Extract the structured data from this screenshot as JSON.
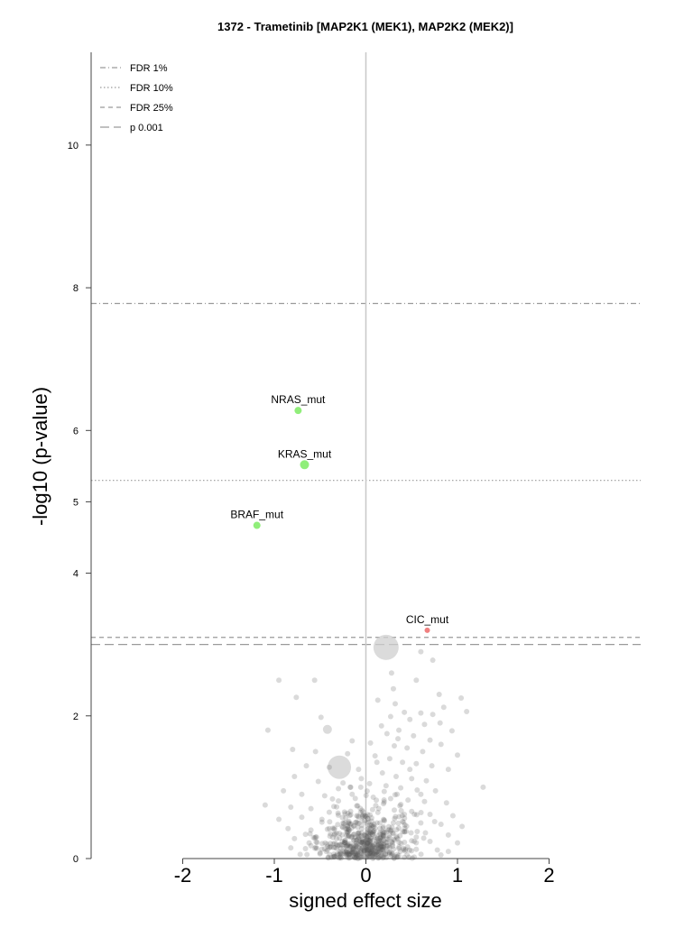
{
  "chart_data": {
    "type": "scatter",
    "title": "1372 - Trametinib [MAP2K1 (MEK1), MAP2K2 (MEK2)]",
    "xlabel": "signed effect size",
    "ylabel": "-log10 (p-value)",
    "xlim": [
      -3.0,
      3.0
    ],
    "ylim": [
      0,
      11.3
    ],
    "x_ticks": [
      -2,
      -1,
      0,
      1,
      2
    ],
    "x_tick_labels": [
      "-2",
      "-1",
      "0",
      "1",
      "2"
    ],
    "y_ticks": [
      0,
      2,
      4,
      5,
      6,
      8,
      10
    ],
    "y_tick_labels": [
      "0",
      "2",
      "4",
      "5",
      "6",
      "8",
      "10"
    ],
    "grid": false,
    "legend_position": "top-left",
    "thresholds": [
      {
        "name": "FDR 1%",
        "y": 7.78,
        "style": "dashdot",
        "color": "#9a9a9a"
      },
      {
        "name": "FDR 10%",
        "y": 5.3,
        "style": "dotted",
        "color": "#9a9a9a"
      },
      {
        "name": "FDR 25%",
        "y": 3.1,
        "style": "dashed-short",
        "color": "#9a9a9a"
      },
      {
        "name": "p 0.001",
        "y": 3.0,
        "style": "dashed-long",
        "color": "#9a9a9a"
      }
    ],
    "highlighted": [
      {
        "label": "NRAS_mut",
        "x": -0.74,
        "y": 6.28,
        "color": "#90EE7A"
      },
      {
        "label": "KRAS_mut",
        "x": -0.67,
        "y": 5.52,
        "color": "#90EE7A"
      },
      {
        "label": "BRAF_mut",
        "x": -1.19,
        "y": 4.67,
        "color": "#90EE7A"
      },
      {
        "label": "CIC_mut",
        "x": 0.67,
        "y": 3.2,
        "color": "#F08080"
      }
    ],
    "big_points": [
      {
        "x": 0.22,
        "y": 2.96
      },
      {
        "x": -0.29,
        "y": 1.28
      },
      {
        "x": -0.42,
        "y": 1.81
      }
    ],
    "background_points": [
      [
        -0.95,
        2.5
      ],
      [
        -0.56,
        2.5
      ],
      [
        0.55,
        2.5
      ],
      [
        1.04,
        2.25
      ],
      [
        0.3,
        2.38
      ],
      [
        0.13,
        2.22
      ],
      [
        -0.76,
        2.26
      ],
      [
        -1.07,
        1.8
      ],
      [
        0.32,
        2.17
      ],
      [
        0.42,
        2.05
      ],
      [
        0.6,
        2.04
      ],
      [
        0.85,
        2.12
      ],
      [
        1.1,
        2.06
      ],
      [
        -0.49,
        1.98
      ],
      [
        0.27,
        1.99
      ],
      [
        0.73,
        2.02
      ],
      [
        0.48,
        1.95
      ],
      [
        0.81,
        1.9
      ],
      [
        0.64,
        1.88
      ],
      [
        0.17,
        1.86
      ],
      [
        0.36,
        1.8
      ],
      [
        0.23,
        1.75
      ],
      [
        0.52,
        1.72
      ],
      [
        0.7,
        1.66
      ],
      [
        0.94,
        1.79
      ],
      [
        -0.15,
        1.65
      ],
      [
        0.05,
        1.62
      ],
      [
        0.31,
        1.58
      ],
      [
        0.45,
        1.55
      ],
      [
        0.62,
        1.5
      ],
      [
        0.82,
        1.6
      ],
      [
        1.0,
        1.45
      ],
      [
        -0.8,
        1.53
      ],
      [
        -0.55,
        1.5
      ],
      [
        -0.2,
        1.47
      ],
      [
        0.1,
        1.44
      ],
      [
        0.26,
        1.4
      ],
      [
        0.4,
        1.35
      ],
      [
        0.55,
        1.33
      ],
      [
        0.72,
        1.3
      ],
      [
        0.9,
        1.25
      ],
      [
        -0.65,
        1.3
      ],
      [
        -0.4,
        1.28
      ],
      [
        -0.08,
        1.25
      ],
      [
        0.18,
        1.2
      ],
      [
        0.33,
        1.15
      ],
      [
        0.5,
        1.12
      ],
      [
        0.66,
        1.09
      ],
      [
        -0.78,
        1.15
      ],
      [
        -0.52,
        1.08
      ],
      [
        -0.25,
        1.06
      ],
      [
        0.04,
        1.05
      ],
      [
        0.22,
        1.02
      ],
      [
        0.38,
        0.99
      ],
      [
        0.56,
        0.96
      ],
      [
        0.76,
        0.95
      ],
      [
        1.28,
        1.0
      ],
      [
        -0.9,
        0.95
      ],
      [
        -0.7,
        0.9
      ],
      [
        -0.45,
        0.88
      ],
      [
        -0.15,
        0.9
      ],
      [
        0.08,
        0.86
      ],
      [
        0.27,
        0.84
      ],
      [
        0.46,
        0.82
      ],
      [
        0.64,
        0.8
      ],
      [
        0.88,
        0.78
      ],
      [
        -1.1,
        0.75
      ],
      [
        -0.82,
        0.72
      ],
      [
        -0.6,
        0.7
      ],
      [
        -0.35,
        0.73
      ],
      [
        -0.1,
        0.74
      ],
      [
        0.14,
        0.7
      ],
      [
        0.31,
        0.68
      ],
      [
        0.5,
        0.66
      ],
      [
        0.7,
        0.62
      ],
      [
        0.95,
        0.6
      ],
      [
        -0.95,
        0.55
      ],
      [
        -0.7,
        0.58
      ],
      [
        -0.48,
        0.55
      ],
      [
        -0.22,
        0.57
      ],
      [
        0.02,
        0.56
      ],
      [
        0.2,
        0.54
      ],
      [
        0.4,
        0.52
      ],
      [
        0.6,
        0.5
      ],
      [
        0.82,
        0.48
      ],
      [
        1.05,
        0.45
      ],
      [
        -0.85,
        0.42
      ],
      [
        -0.6,
        0.4
      ],
      [
        -0.4,
        0.42
      ],
      [
        -0.18,
        0.4
      ],
      [
        0.05,
        0.42
      ],
      [
        0.24,
        0.4
      ],
      [
        0.44,
        0.38
      ],
      [
        0.65,
        0.36
      ],
      [
        0.9,
        0.33
      ],
      [
        -0.78,
        0.28
      ],
      [
        -0.55,
        0.3
      ],
      [
        -0.32,
        0.28
      ],
      [
        -0.12,
        0.3
      ],
      [
        0.1,
        0.3
      ],
      [
        0.3,
        0.27
      ],
      [
        0.5,
        0.25
      ],
      [
        0.7,
        0.24
      ],
      [
        1.0,
        0.22
      ],
      [
        -0.82,
        0.15
      ],
      [
        -0.6,
        0.18
      ],
      [
        -0.38,
        0.16
      ],
      [
        -0.2,
        0.18
      ],
      [
        0.0,
        0.18
      ],
      [
        0.18,
        0.16
      ],
      [
        0.36,
        0.14
      ],
      [
        0.55,
        0.13
      ],
      [
        0.78,
        0.12
      ],
      [
        -0.5,
        0.08
      ],
      [
        -0.28,
        0.07
      ],
      [
        -0.1,
        0.08
      ],
      [
        0.08,
        0.07
      ],
      [
        0.26,
        0.06
      ],
      [
        0.45,
        0.05
      ],
      [
        -0.05,
        0.03
      ],
      [
        0.15,
        0.02
      ],
      [
        -0.35,
        0.02
      ],
      [
        0.6,
        0.9
      ],
      [
        0.48,
        1.25
      ],
      [
        0.35,
        1.68
      ],
      [
        0.12,
        1.35
      ],
      [
        -0.05,
        1.12
      ],
      [
        -0.3,
        0.98
      ],
      [
        0.2,
        0.94
      ],
      [
        0.42,
        0.62
      ],
      [
        0.55,
        0.3
      ],
      [
        -0.25,
        0.5
      ],
      [
        -0.62,
        0.22
      ],
      [
        0.9,
        0.1
      ],
      [
        0.28,
        2.6
      ],
      [
        0.73,
        2.78
      ],
      [
        0.6,
        2.9
      ],
      [
        0.8,
        2.3
      ],
      [
        -0.1,
        0.6
      ],
      [
        0.12,
        0.5
      ],
      [
        -0.4,
        0.65
      ],
      [
        0.34,
        0.9
      ],
      [
        0.04,
        0.25
      ],
      [
        -0.14,
        0.12
      ]
    ],
    "cluster": {
      "center": [
        0.0,
        0.3
      ],
      "spread_x": 0.25,
      "spread_y": 0.32,
      "count": 520
    }
  }
}
